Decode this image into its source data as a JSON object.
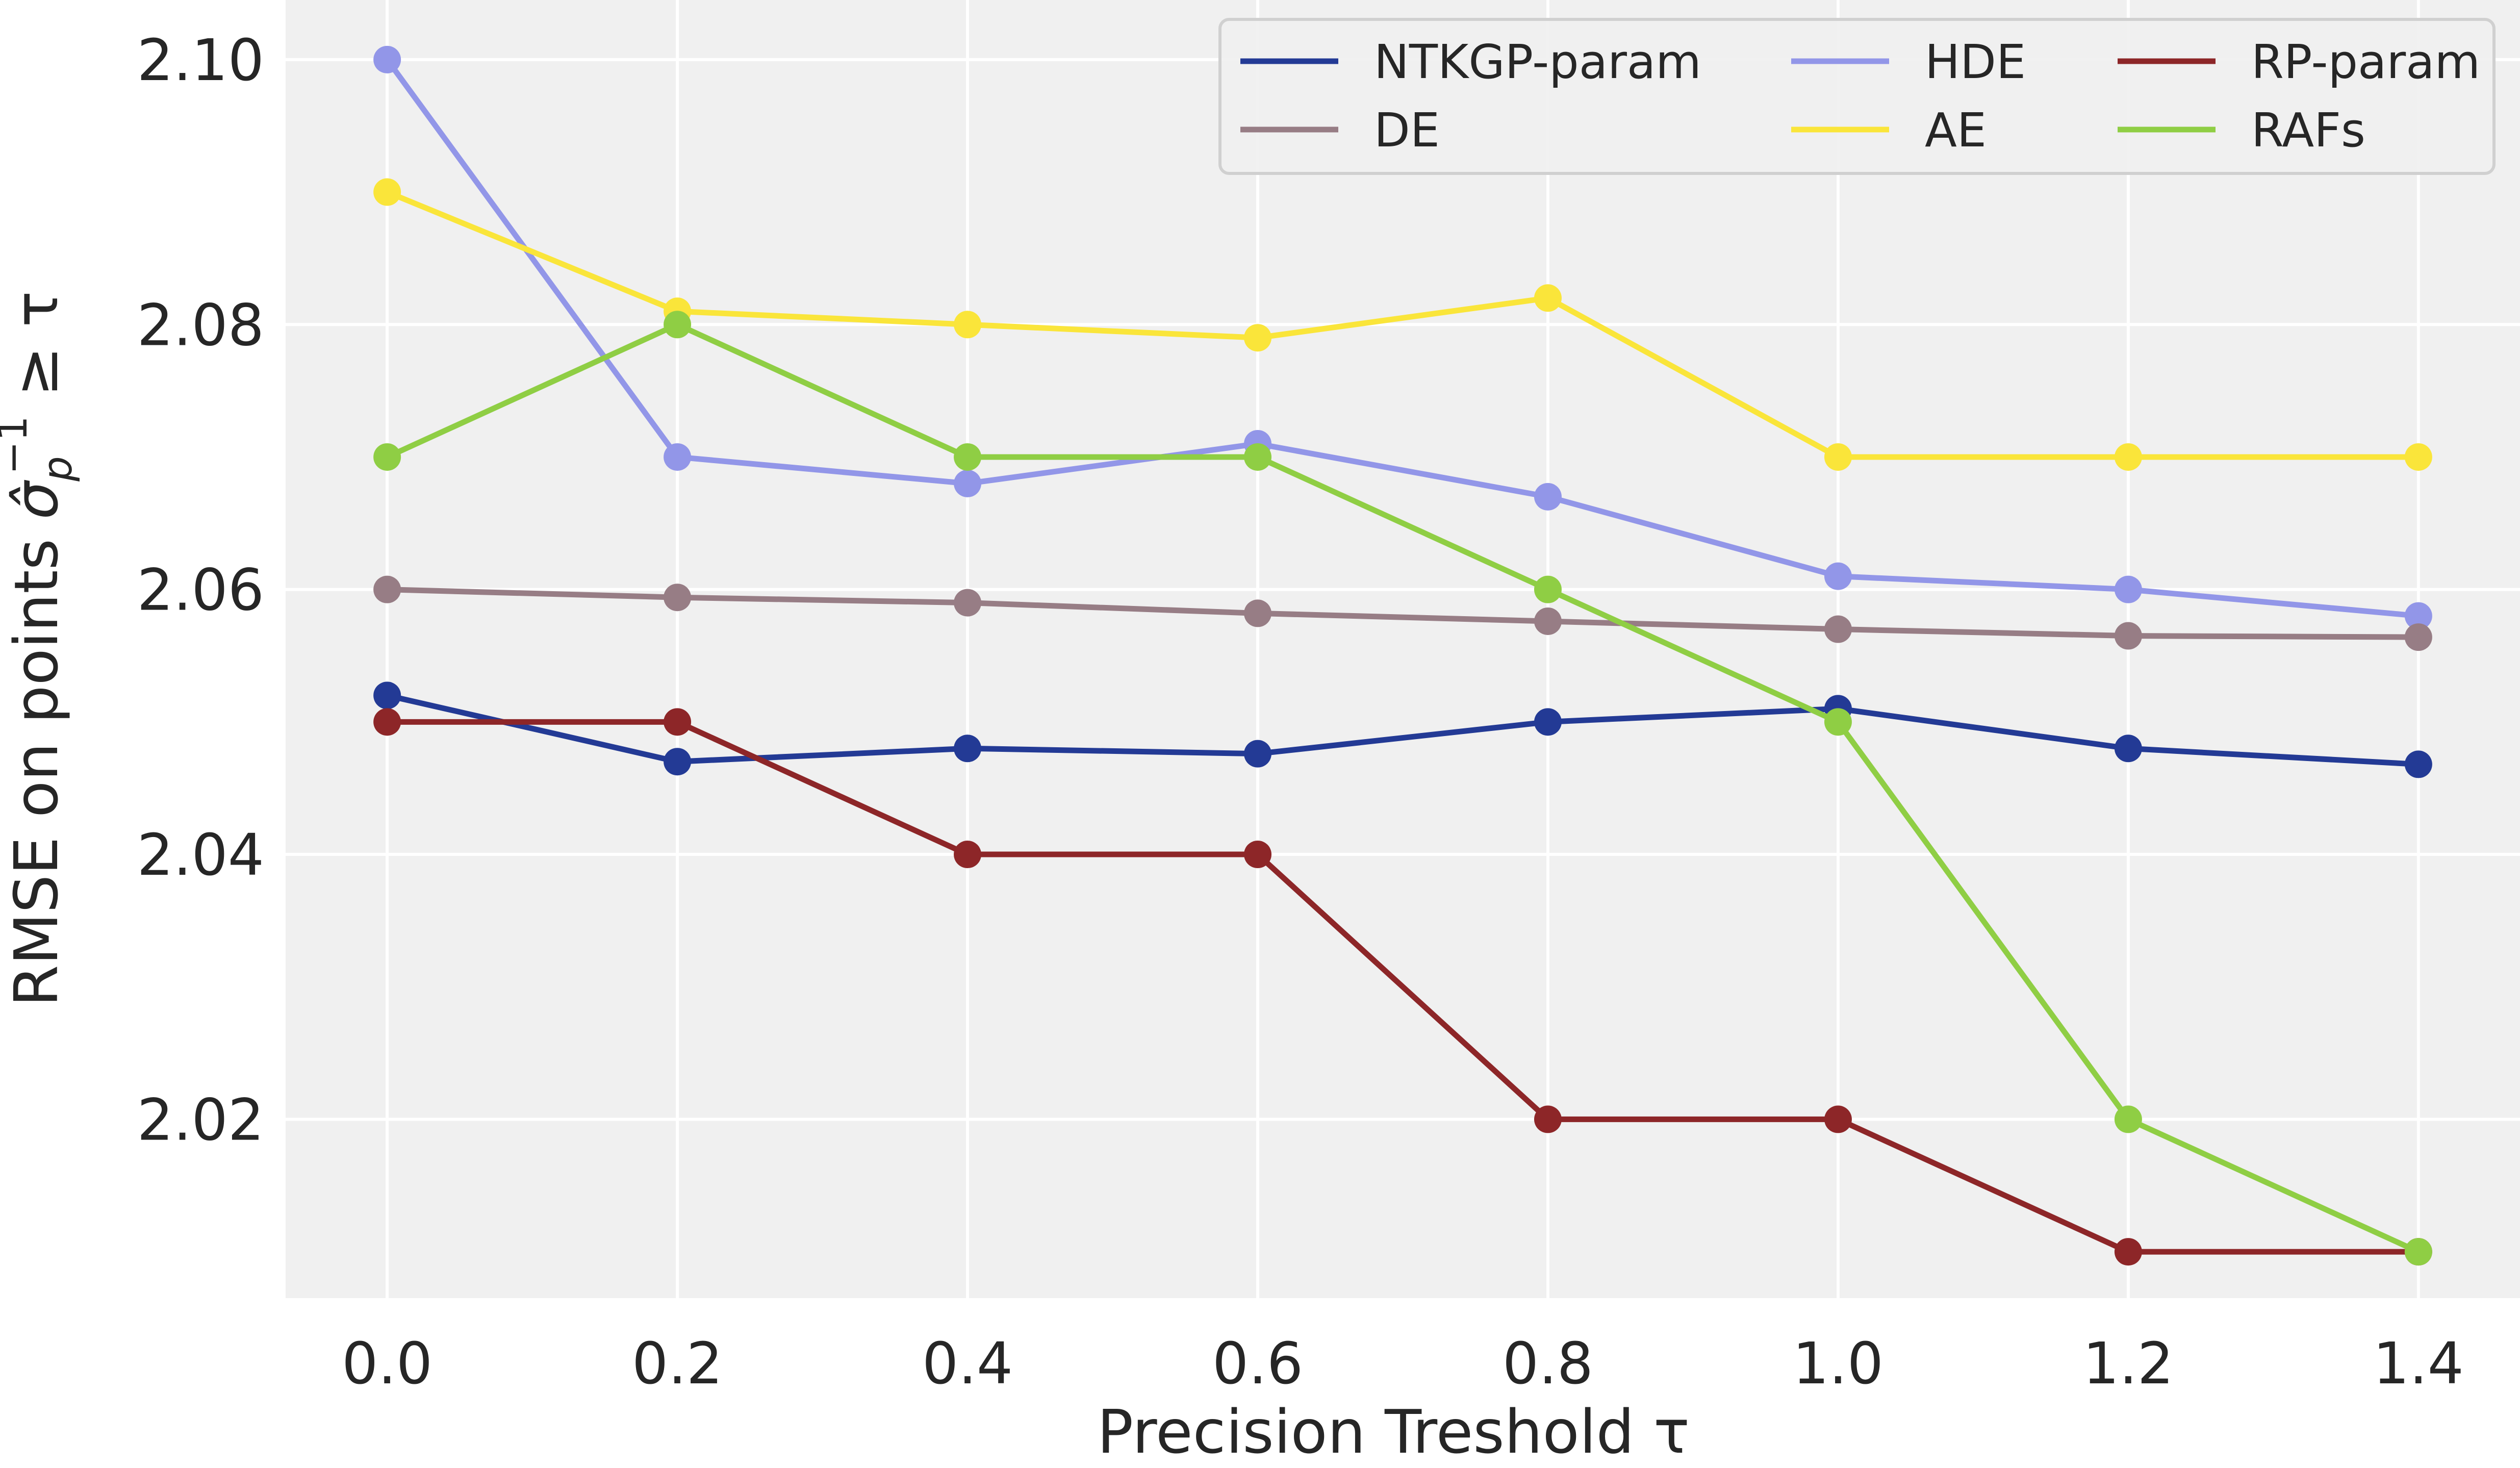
{
  "chart_data": {
    "type": "line",
    "title": "",
    "xlabel": "Precision Treshold τ",
    "ylabel": "RMSE on points σ̂ₚ⁻¹ ≥ τ",
    "ylabel_parts": {
      "prefix": "RMSE on points ",
      "sigma": "σ̂",
      "sub": "p",
      "sup": "−1",
      "suffix": " ≥ τ"
    },
    "x": [
      0.0,
      0.2,
      0.4,
      0.6,
      0.8,
      1.0,
      1.2,
      1.4
    ],
    "x_tick_labels": [
      "0.0",
      "0.2",
      "0.4",
      "0.6",
      "0.8",
      "1.0",
      "1.2",
      "1.4"
    ],
    "xlim": [
      -0.07,
      1.47
    ],
    "y_ticks": [
      2.02,
      2.04,
      2.06,
      2.08,
      2.1
    ],
    "y_tick_labels": [
      "2.02",
      "2.04",
      "2.06",
      "2.08",
      "2.10"
    ],
    "ylim": [
      2.0065,
      2.1045
    ],
    "grid": true,
    "legend_position": "top-right",
    "legend_columns": 3,
    "series": [
      {
        "name": "NTKGP-param",
        "color": "#233a95",
        "values": [
          2.052,
          2.047,
          2.048,
          2.0476,
          2.05,
          2.051,
          2.048,
          2.0468
        ]
      },
      {
        "name": "DE",
        "color": "#977d85",
        "values": [
          2.06,
          2.0594,
          2.059,
          2.0582,
          2.0576,
          2.057,
          2.0565,
          2.0564
        ]
      },
      {
        "name": "HDE",
        "color": "#9296e8",
        "values": [
          2.1,
          2.07,
          2.068,
          2.071,
          2.067,
          2.061,
          2.06,
          2.058
        ]
      },
      {
        "name": "AE",
        "color": "#fae53a",
        "values": [
          2.09,
          2.081,
          2.08,
          2.079,
          2.082,
          2.07,
          2.07,
          2.07
        ]
      },
      {
        "name": "RP-param",
        "color": "#8d2628",
        "values": [
          2.05,
          2.05,
          2.04,
          2.04,
          2.02,
          2.02,
          2.01,
          2.01
        ]
      },
      {
        "name": "RAFs",
        "color": "#8fce44",
        "values": [
          2.07,
          2.08,
          2.07,
          2.07,
          2.06,
          2.05,
          2.02,
          2.01
        ]
      }
    ],
    "legend_order": [
      "NTKGP-param",
      "HDE",
      "RP-param",
      "DE",
      "AE",
      "RAFs"
    ],
    "draw_order": [
      "HDE",
      "AE",
      "DE",
      "NTKGP-param",
      "RP-param",
      "RAFs"
    ]
  }
}
